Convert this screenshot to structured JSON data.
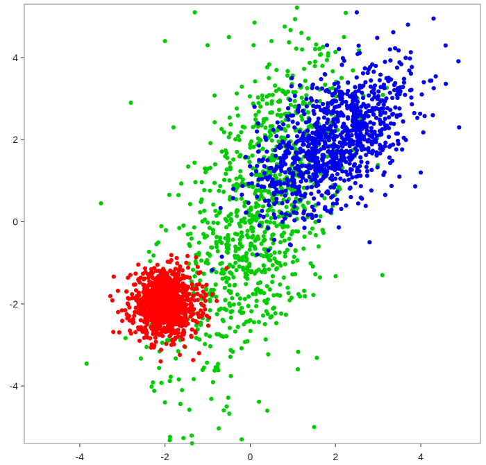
{
  "chart_data": {
    "type": "scatter",
    "title": "",
    "xlabel": "",
    "ylabel": "",
    "xlim": [
      -5.3,
      5.4
    ],
    "ylim": [
      -5.4,
      5.3
    ],
    "xticks": [
      -4,
      -2,
      0,
      2,
      4
    ],
    "yticks": [
      -4,
      -2,
      0,
      2,
      4
    ],
    "xtick_labels": [
      "-4",
      "-2",
      "0",
      "2",
      "4"
    ],
    "ytick_labels": [
      "-4",
      "-2",
      "0",
      "2",
      "4"
    ],
    "grid": false,
    "legend": "none",
    "series": [
      {
        "color": "#00cc00",
        "points": 1000,
        "center": [
          0.2,
          0.2
        ],
        "spread": [
          1.0,
          2.0
        ],
        "correlation": 0.55,
        "x": [
          -3.5,
          -2.8,
          -2.0,
          -1.3,
          -1.0,
          -0.5,
          0.1,
          0.5,
          1.2,
          2.2,
          0.4,
          -0.2,
          1.5,
          -2.0,
          -1.6,
          -1.8,
          3.1,
          0.8
        ],
        "y": [
          0.45,
          2.9,
          4.4,
          5.1,
          4.3,
          4.5,
          4.85,
          4.4,
          4.6,
          4.5,
          -4.6,
          -5.3,
          -5.0,
          -4.4,
          -4.1,
          2.3,
          -1.3,
          1.0
        ]
      },
      {
        "color": "#0000ee",
        "points": 1000,
        "center": [
          2.0,
          2.0
        ],
        "spread": [
          0.9,
          0.9
        ],
        "correlation": 0.55,
        "x": [
          2.5,
          4.3,
          3.7,
          4.9,
          -0.4,
          0.1,
          2.8,
          3.5,
          1.8,
          4.0
        ],
        "y": [
          5.1,
          4.95,
          4.8,
          2.3,
          0.8,
          2.8,
          -0.5,
          1.1,
          4.3,
          1.2
        ]
      },
      {
        "color": "#ff0000",
        "points": 1000,
        "center": [
          -2.0,
          -2.0
        ],
        "spread": [
          0.4,
          0.4
        ],
        "correlation": 0.0,
        "x": [
          -3.1,
          -2.1,
          -1.5,
          -2.5,
          -1.2
        ],
        "y": [
          -2.2,
          -3.4,
          -1.0,
          -1.4,
          -3.2
        ]
      }
    ]
  }
}
